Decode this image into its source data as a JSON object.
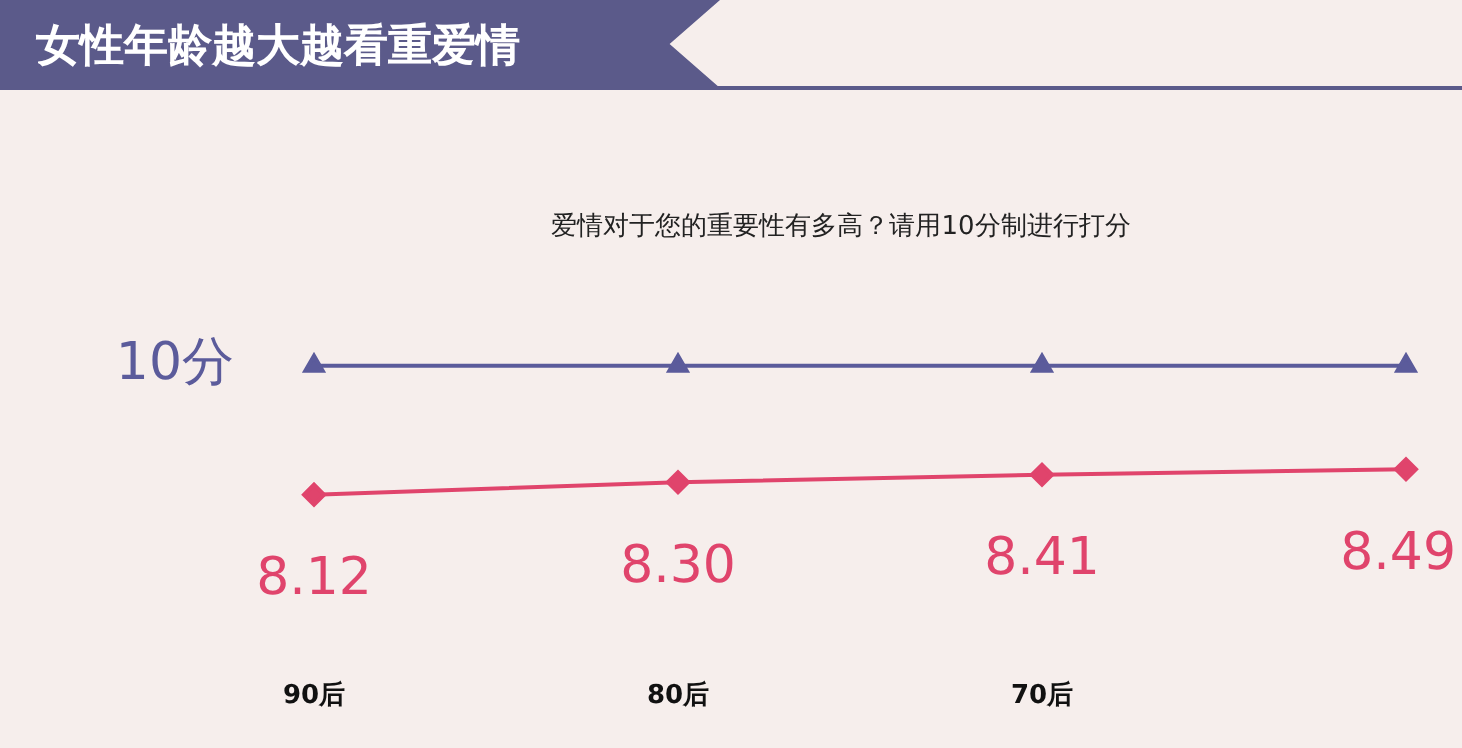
{
  "chart_data": {
    "type": "line",
    "title": "女性年龄越大越看重爱情",
    "subtitle": "爱情对于您的重要性有多高？请用10分制进行打分",
    "categories": [
      "90后",
      "80后",
      "70后",
      null
    ],
    "series": [
      {
        "name": "10分",
        "color": "#5b5b9b",
        "marker": "triangle",
        "values": [
          10,
          10,
          10,
          10
        ]
      },
      {
        "color": "#e0446c",
        "marker": "diamond",
        "values": [
          8.12,
          8.3,
          8.41,
          8.49
        ],
        "value_labels": [
          "8.12",
          "8.30",
          "8.41",
          "8.49"
        ]
      }
    ],
    "legend": false,
    "grid": false,
    "line_style": "solid",
    "tick_labels": "x"
  }
}
